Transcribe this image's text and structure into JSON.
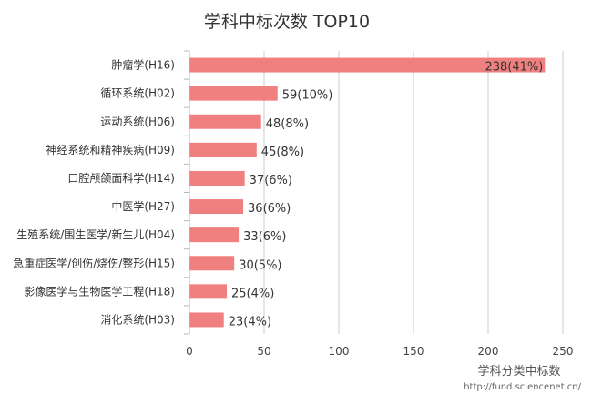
{
  "chart_data": {
    "type": "bar",
    "orientation": "horizontal",
    "title": "学科中标次数 TOP10",
    "xlabel": "学科分类中标数",
    "ylabel": "",
    "xlim": [
      0,
      250
    ],
    "xticks": [
      0,
      50,
      100,
      150,
      200,
      250
    ],
    "grid": true,
    "categories": [
      "肿瘤学(H16)",
      "循环系统(H02)",
      "运动系统(H06)",
      "神经系统和精神疾病(H09)",
      "口腔颅颌面科学(H14)",
      "中医学(H27)",
      "生殖系统/围生医学/新生儿(H04)",
      "急重症医学/创伤/烧伤/整形(H15)",
      "影像医学与生物医学工程(H18)",
      "消化系统(H03)"
    ],
    "values": [
      238,
      59,
      48,
      45,
      37,
      36,
      33,
      30,
      25,
      23
    ],
    "value_labels": [
      "238(41%)",
      "59(10%)",
      "48(8%)",
      "45(8%)",
      "37(6%)",
      "36(6%)",
      "33(6%)",
      "30(5%)",
      "25(4%)",
      "23(4%)"
    ],
    "bar_color": "#f08080",
    "source": "http://fund.sciencenet.cn/"
  }
}
